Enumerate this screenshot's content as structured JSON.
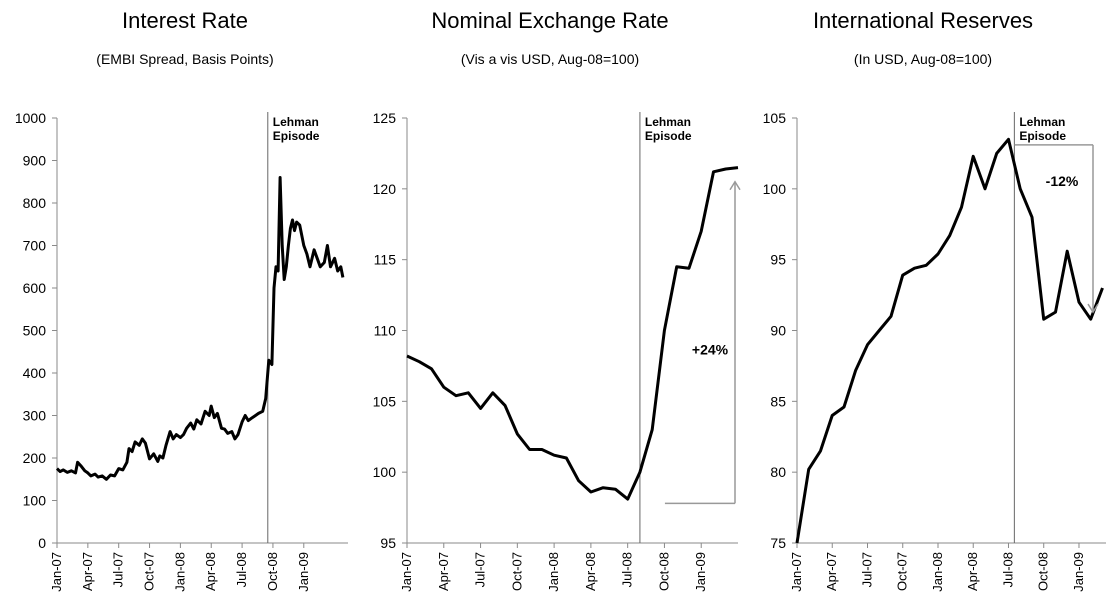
{
  "chart_data": [
    {
      "type": "line",
      "title": "Interest Rate",
      "subtitle": "(EMBI Spread, Basis Points)",
      "ylim": [
        0,
        1000
      ],
      "yticks": [
        "0",
        "100",
        "200",
        "300",
        "400",
        "500",
        "600",
        "700",
        "800",
        "900",
        "1000"
      ],
      "xticks": [
        "Jan-07",
        "Apr-07",
        "Jul-07",
        "Oct-07",
        "Jan-08",
        "Apr-08",
        "Jul-08",
        "Oct-08",
        "Jan-09"
      ],
      "xlim": [
        0,
        28.3
      ],
      "event_x": 20.5,
      "event_label_lines": [
        "Lehman",
        "Episode"
      ],
      "series": [
        {
          "x": [
            0,
            0.3,
            0.6,
            1,
            1.4,
            1.8,
            2,
            2.3,
            2.7,
            3,
            3.3,
            3.7,
            4,
            4.4,
            4.8,
            5.2,
            5.6,
            6,
            6.4,
            6.8,
            7,
            7.3,
            7.6,
            8,
            8.3,
            8.6,
            9,
            9.4,
            9.8,
            10,
            10.3,
            10.6,
            11,
            11.3,
            11.6,
            12,
            12.3,
            12.6,
            13,
            13.3,
            13.6,
            14,
            14.4,
            14.8,
            15,
            15.3,
            15.6,
            16,
            16.3,
            16.6,
            17,
            17.3,
            17.6,
            18,
            18.3,
            18.6,
            19,
            19.3,
            19.6,
            20,
            20.3,
            20.6,
            20.9,
            21.1,
            21.3,
            21.5,
            21.7,
            21.9,
            22.1,
            22.3,
            22.5,
            22.7,
            22.9,
            23.1,
            23.3,
            23.6,
            24,
            24.3,
            24.6,
            25,
            25.3,
            25.6,
            26,
            26.3,
            26.6,
            27,
            27.3,
            27.6,
            27.8
          ],
          "y": [
            175,
            168,
            172,
            166,
            170,
            165,
            190,
            182,
            170,
            165,
            158,
            162,
            155,
            158,
            150,
            160,
            158,
            175,
            172,
            190,
            222,
            215,
            238,
            230,
            245,
            235,
            198,
            210,
            192,
            205,
            200,
            230,
            262,
            245,
            255,
            248,
            255,
            270,
            282,
            268,
            290,
            280,
            310,
            300,
            322,
            295,
            305,
            270,
            268,
            258,
            262,
            245,
            255,
            285,
            300,
            288,
            295,
            300,
            305,
            310,
            340,
            430,
            420,
            600,
            650,
            640,
            860,
            700,
            620,
            650,
            700,
            740,
            760,
            735,
            755,
            748,
            700,
            680,
            650,
            690,
            670,
            650,
            660,
            700,
            650,
            670,
            640,
            650,
            625
          ]
        }
      ]
    },
    {
      "type": "line",
      "title": "Nominal Exchange Rate",
      "subtitle": "(Vis a vis USD, Aug-08=100)",
      "ylim": [
        95,
        125
      ],
      "yticks": [
        "95",
        "100",
        "105",
        "110",
        "115",
        "120",
        "125"
      ],
      "xticks": [
        "Jan-07",
        "Apr-07",
        "Jul-07",
        "Oct-07",
        "Jan-08",
        "Apr-08",
        "Jul-08",
        "Oct-08",
        "Jan-09"
      ],
      "xlim": [
        0,
        27
      ],
      "event_x": 19,
      "event_label_lines": [
        "Lehman",
        "Episode"
      ],
      "annotation": "+24%",
      "series": [
        {
          "x": [
            0,
            1,
            2,
            3,
            4,
            5,
            6,
            7,
            8,
            9,
            10,
            11,
            12,
            13,
            14,
            15,
            16,
            17,
            18,
            19,
            20,
            21,
            22,
            23,
            24,
            25,
            26,
            27
          ],
          "y": [
            108.2,
            107.8,
            107.3,
            106,
            105.4,
            105.6,
            104.5,
            105.6,
            104.7,
            102.7,
            101.6,
            101.6,
            101.2,
            101,
            99.4,
            98.6,
            98.9,
            98.8,
            98.1,
            100,
            103,
            110,
            114.5,
            114.4,
            117,
            121.2,
            121.4,
            121.5
          ]
        }
      ]
    },
    {
      "type": "line",
      "title": "International Reserves",
      "subtitle": "(In USD, Aug-08=100)",
      "ylim": [
        75,
        105
      ],
      "yticks": [
        "75",
        "80",
        "85",
        "90",
        "95",
        "100",
        "105"
      ],
      "xticks": [
        "Jan-07",
        "Apr-07",
        "Jul-07",
        "Oct-07",
        "Jan-08",
        "Apr-08",
        "Jul-08",
        "Oct-08",
        "Jan-09"
      ],
      "xlim": [
        0,
        26.3
      ],
      "event_x": 18.5,
      "event_label_lines": [
        "Lehman",
        "Episode"
      ],
      "annotation": "-12%",
      "series": [
        {
          "x": [
            0,
            1,
            2,
            3,
            4,
            5,
            6,
            7,
            8,
            9,
            10,
            11,
            12,
            13,
            14,
            15,
            16,
            17,
            18,
            19,
            20,
            21,
            22,
            23,
            24,
            25,
            26
          ],
          "y": [
            75,
            80.2,
            81.5,
            84,
            84.6,
            87.2,
            89,
            90,
            91,
            93.9,
            94.4,
            94.6,
            95.4,
            96.7,
            98.7,
            102.3,
            100,
            102.5,
            103.5,
            100,
            98,
            90.8,
            91.3,
            95.6,
            92,
            90.8,
            93
          ]
        }
      ]
    }
  ]
}
